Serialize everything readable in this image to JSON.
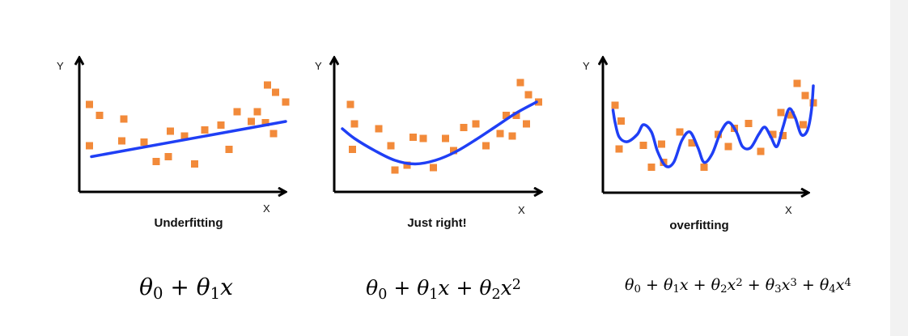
{
  "colors": {
    "points": "#f28a3a",
    "curve": "#1f3ff5",
    "axes": "#000000",
    "background": "#ffffff"
  },
  "panels": [
    {
      "title": "Underfitting",
      "x_axis_label": "X",
      "y_axis_label": "Y",
      "formula": {
        "parts": [
          {
            "t": "θ"
          },
          {
            "t": "0",
            "sub": true
          },
          {
            "t": " + ",
            "up": true
          },
          {
            "t": "θ"
          },
          {
            "t": "1",
            "sub": true
          },
          {
            "t": "x"
          }
        ]
      },
      "points": [
        [
          0.05,
          0.72
        ],
        [
          0.1,
          0.63
        ],
        [
          0.22,
          0.6
        ],
        [
          0.05,
          0.38
        ],
        [
          0.21,
          0.42
        ],
        [
          0.32,
          0.41
        ],
        [
          0.38,
          0.25
        ],
        [
          0.44,
          0.29
        ],
        [
          0.45,
          0.5
        ],
        [
          0.52,
          0.46
        ],
        [
          0.57,
          0.23
        ],
        [
          0.62,
          0.51
        ],
        [
          0.7,
          0.55
        ],
        [
          0.74,
          0.35
        ],
        [
          0.78,
          0.66
        ],
        [
          0.85,
          0.58
        ],
        [
          0.88,
          0.66
        ],
        [
          0.92,
          0.57
        ],
        [
          0.93,
          0.88
        ],
        [
          0.97,
          0.82
        ],
        [
          1.02,
          0.74
        ],
        [
          0.96,
          0.48
        ]
      ],
      "curve": [
        [
          0.06,
          0.29
        ],
        [
          1.02,
          0.58
        ]
      ]
    },
    {
      "title": "Just right!",
      "x_axis_label": "X",
      "y_axis_label": "Y",
      "formula": {
        "parts": [
          {
            "t": "θ"
          },
          {
            "t": "0",
            "sub": true
          },
          {
            "t": " + ",
            "up": true
          },
          {
            "t": "θ"
          },
          {
            "t": "1",
            "sub": true
          },
          {
            "t": "x"
          },
          {
            "t": " + ",
            "up": true
          },
          {
            "t": "θ"
          },
          {
            "t": "2",
            "sub": true
          },
          {
            "t": "x"
          },
          {
            "t": "2",
            "sup": true
          }
        ]
      },
      "points": [
        [
          0.08,
          0.72
        ],
        [
          0.1,
          0.56
        ],
        [
          0.09,
          0.35
        ],
        [
          0.22,
          0.52
        ],
        [
          0.28,
          0.38
        ],
        [
          0.3,
          0.18
        ],
        [
          0.36,
          0.22
        ],
        [
          0.39,
          0.45
        ],
        [
          0.44,
          0.44
        ],
        [
          0.49,
          0.2
        ],
        [
          0.55,
          0.44
        ],
        [
          0.59,
          0.34
        ],
        [
          0.64,
          0.53
        ],
        [
          0.7,
          0.56
        ],
        [
          0.75,
          0.38
        ],
        [
          0.82,
          0.48
        ],
        [
          0.85,
          0.63
        ],
        [
          0.88,
          0.46
        ],
        [
          0.9,
          0.63
        ],
        [
          0.92,
          0.9
        ],
        [
          0.96,
          0.8
        ],
        [
          1.01,
          0.74
        ],
        [
          0.95,
          0.56
        ]
      ],
      "curve": [
        [
          0.04,
          0.52
        ],
        [
          0.1,
          0.44
        ],
        [
          0.2,
          0.34
        ],
        [
          0.3,
          0.26
        ],
        [
          0.4,
          0.23
        ],
        [
          0.5,
          0.26
        ],
        [
          0.6,
          0.33
        ],
        [
          0.7,
          0.43
        ],
        [
          0.8,
          0.54
        ],
        [
          0.9,
          0.65
        ],
        [
          1.0,
          0.74
        ]
      ]
    },
    {
      "title": "overfitting",
      "x_axis_label": "X",
      "y_axis_label": "Y",
      "formula": {
        "parts": [
          {
            "t": "θ"
          },
          {
            "t": "0",
            "sub": true
          },
          {
            "t": " + ",
            "up": true
          },
          {
            "t": "θ"
          },
          {
            "t": "1",
            "sub": true
          },
          {
            "t": "x"
          },
          {
            "t": " + ",
            "up": true
          },
          {
            "t": "θ"
          },
          {
            "t": "2",
            "sub": true
          },
          {
            "t": "x"
          },
          {
            "t": "2",
            "sup": true
          },
          {
            "t": " + ",
            "up": true
          },
          {
            "t": "θ"
          },
          {
            "t": "3",
            "sub": true
          },
          {
            "t": "x"
          },
          {
            "t": "3",
            "sup": true
          },
          {
            "t": " + ",
            "up": true
          },
          {
            "t": "θ"
          },
          {
            "t": "4",
            "sub": true
          },
          {
            "t": "x"
          },
          {
            "t": "4",
            "sup": true
          }
        ]
      },
      "points": [
        [
          0.06,
          0.72
        ],
        [
          0.09,
          0.59
        ],
        [
          0.08,
          0.36
        ],
        [
          0.2,
          0.39
        ],
        [
          0.24,
          0.21
        ],
        [
          0.29,
          0.4
        ],
        [
          0.3,
          0.25
        ],
        [
          0.38,
          0.5
        ],
        [
          0.44,
          0.41
        ],
        [
          0.5,
          0.21
        ],
        [
          0.57,
          0.48
        ],
        [
          0.62,
          0.38
        ],
        [
          0.65,
          0.53
        ],
        [
          0.72,
          0.57
        ],
        [
          0.78,
          0.34
        ],
        [
          0.84,
          0.48
        ],
        [
          0.88,
          0.66
        ],
        [
          0.89,
          0.47
        ],
        [
          0.93,
          0.64
        ],
        [
          0.96,
          0.9
        ],
        [
          1.0,
          0.8
        ],
        [
          1.04,
          0.74
        ],
        [
          0.99,
          0.56
        ]
      ],
      "curve": [
        [
          0.05,
          0.68
        ],
        [
          0.06,
          0.58
        ],
        [
          0.08,
          0.46
        ],
        [
          0.12,
          0.42
        ],
        [
          0.17,
          0.48
        ],
        [
          0.2,
          0.56
        ],
        [
          0.24,
          0.5
        ],
        [
          0.27,
          0.34
        ],
        [
          0.31,
          0.22
        ],
        [
          0.35,
          0.25
        ],
        [
          0.39,
          0.43
        ],
        [
          0.43,
          0.5
        ],
        [
          0.47,
          0.37
        ],
        [
          0.5,
          0.25
        ],
        [
          0.54,
          0.32
        ],
        [
          0.58,
          0.49
        ],
        [
          0.62,
          0.58
        ],
        [
          0.66,
          0.5
        ],
        [
          0.69,
          0.38
        ],
        [
          0.73,
          0.37
        ],
        [
          0.77,
          0.48
        ],
        [
          0.8,
          0.54
        ],
        [
          0.83,
          0.46
        ],
        [
          0.86,
          0.38
        ],
        [
          0.89,
          0.54
        ],
        [
          0.92,
          0.69
        ],
        [
          0.95,
          0.62
        ],
        [
          0.98,
          0.48
        ],
        [
          1.01,
          0.51
        ],
        [
          1.03,
          0.67
        ],
        [
          1.04,
          0.88
        ]
      ]
    }
  ]
}
